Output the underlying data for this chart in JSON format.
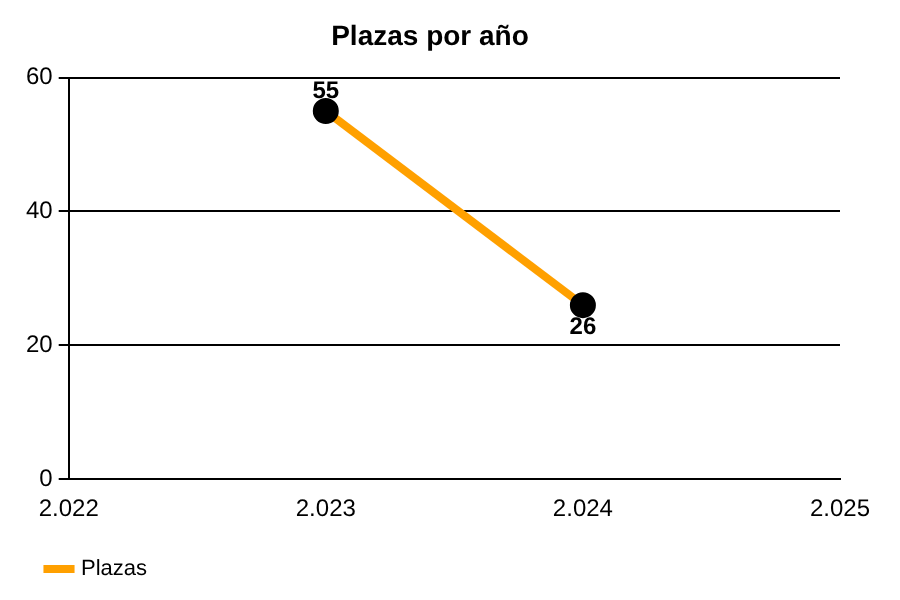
{
  "chart_data": {
    "type": "line",
    "title": "Plazas por año",
    "x": [
      2023,
      2024
    ],
    "series": [
      {
        "name": "Plazas",
        "color": "#ffa000",
        "colors": [
          "#000000",
          "#000000"
        ],
        "values": [
          55,
          26
        ]
      }
    ],
    "xlim": [
      2022,
      2025
    ],
    "xticks": [
      {
        "value": 2022,
        "label": "2.022"
      },
      {
        "value": 2023,
        "label": "2.023"
      },
      {
        "value": 2024,
        "label": "2.024"
      },
      {
        "value": 2025,
        "label": "2.025"
      }
    ],
    "ylim": [
      0,
      60
    ],
    "yticks": [
      0,
      20,
      40,
      60
    ],
    "grid": "y",
    "legend": "bottom left",
    "marker": "circle",
    "line_style": "solid",
    "data_labels": true
  }
}
